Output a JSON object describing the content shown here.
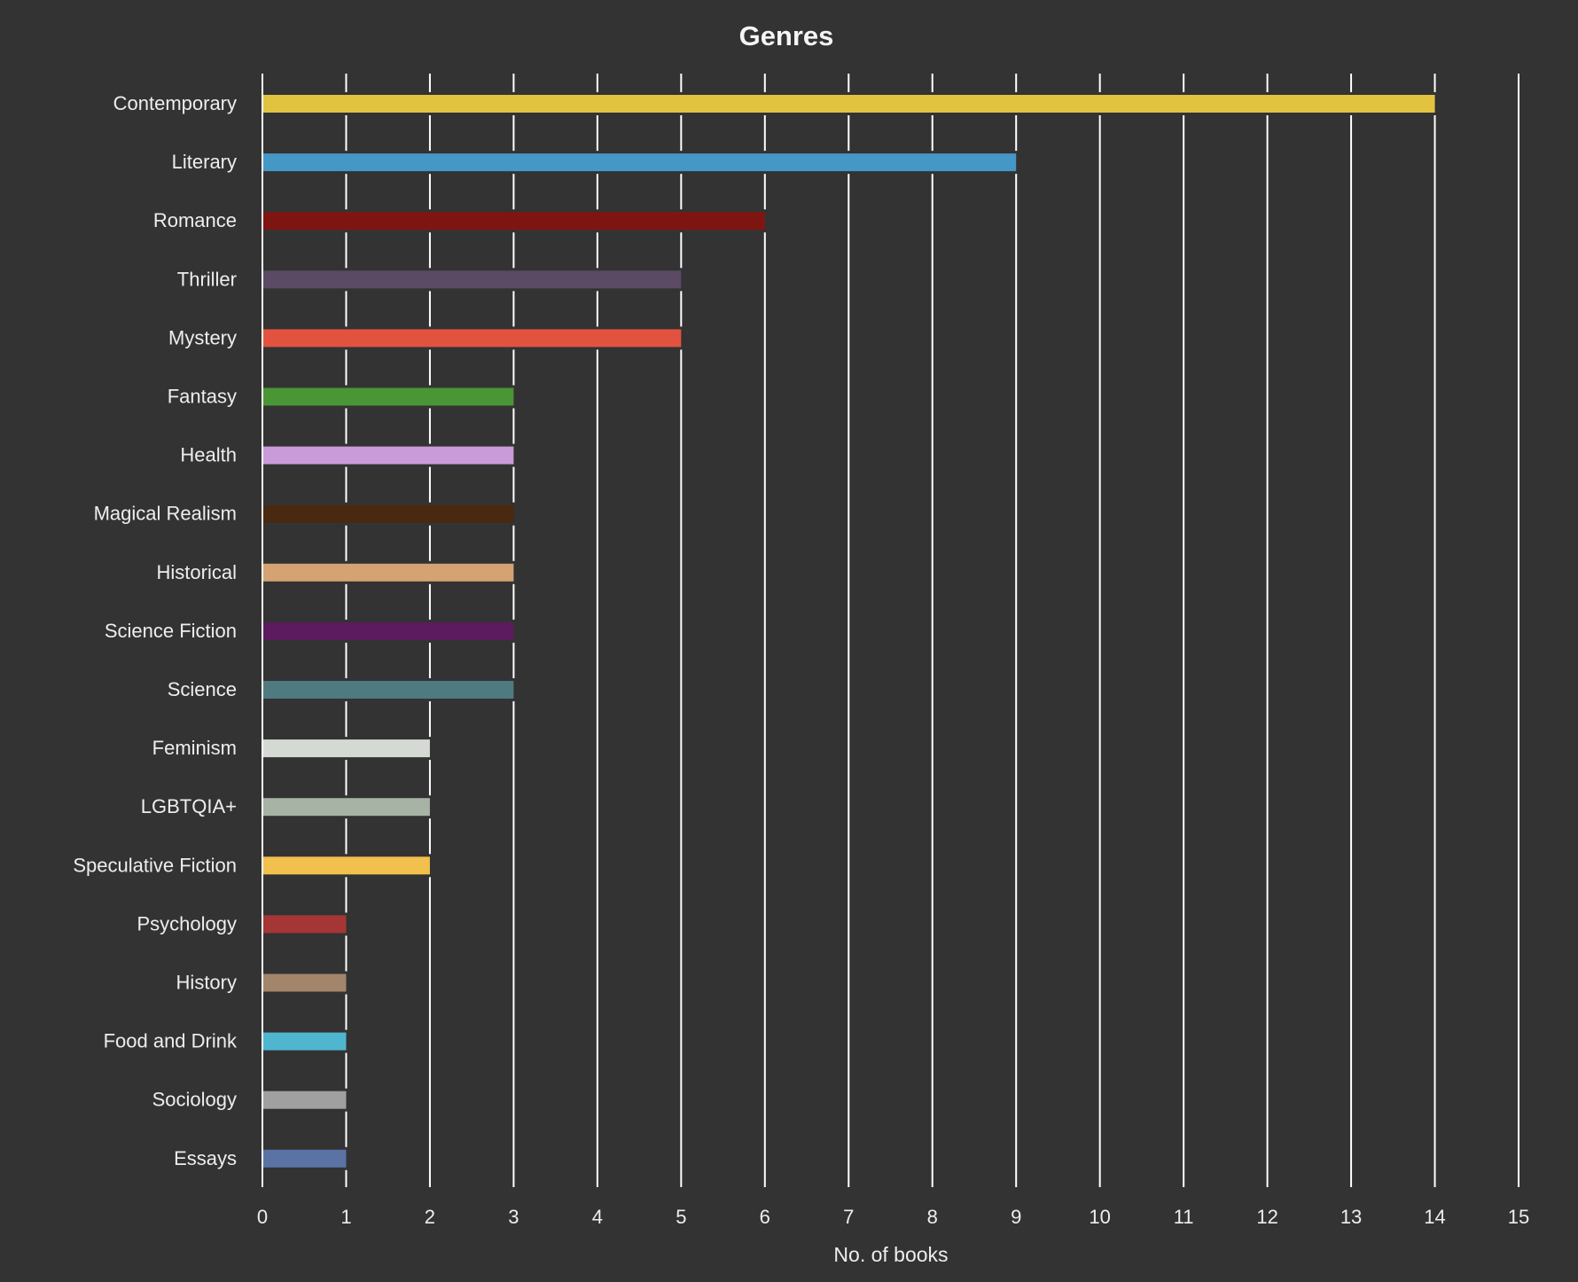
{
  "chart_data": {
    "type": "bar",
    "orientation": "horizontal",
    "title": "Genres",
    "xlabel": "No. of books",
    "ylabel": "",
    "xlim": [
      0,
      15
    ],
    "xticks": [
      "0",
      "1",
      "2",
      "3",
      "4",
      "5",
      "6",
      "7",
      "8",
      "9",
      "10",
      "11",
      "12",
      "13",
      "14",
      "15"
    ],
    "grid": "vertical",
    "background": "#333333",
    "categories": [
      "Contemporary",
      "Literary",
      "Romance",
      "Thriller",
      "Mystery",
      "Fantasy",
      "Health",
      "Magical Realism",
      "Historical",
      "Science Fiction",
      "Science",
      "Feminism",
      "LGBTQIA+",
      "Speculative Fiction",
      "Psychology",
      "History",
      "Food and Drink",
      "Sociology",
      "Essays"
    ],
    "values": [
      14,
      9,
      6,
      5,
      5,
      3,
      3,
      3,
      3,
      3,
      3,
      2,
      2,
      2,
      1,
      1,
      1,
      1,
      1
    ],
    "colors": [
      "#e1c340",
      "#4597c6",
      "#7f1511",
      "#5a4a64",
      "#e2533f",
      "#4a9535",
      "#c99bd9",
      "#4a2911",
      "#d4a273",
      "#5b1b5e",
      "#4f7a80",
      "#d5d9d3",
      "#a7b3a5",
      "#f2c04c",
      "#a53635",
      "#a2856a",
      "#50b6d0",
      "#a0a0a0",
      "#5b72a5"
    ]
  }
}
